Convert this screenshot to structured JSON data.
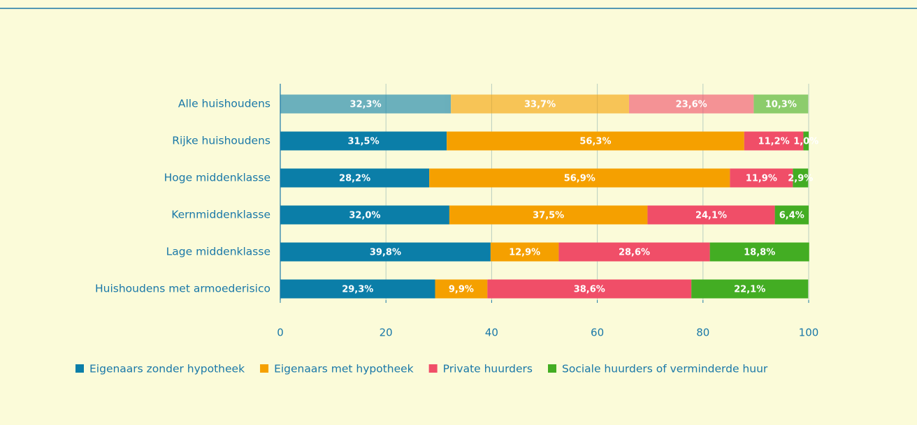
{
  "chart_data": {
    "type": "stacked_bar_horizontal",
    "categories": [
      "Alle huishoudens",
      "Rijke huishoudens",
      "Hoge middenklasse",
      "Kernmiddenklasse",
      "Lage middenklasse",
      "Huishoudens met armoederisico"
    ],
    "category_opacity": [
      0.6,
      1,
      1,
      1,
      1,
      1
    ],
    "series": [
      {
        "name": "Eigenaars zonder hypotheek",
        "color": "#0b7ea8",
        "values": [
          32.3,
          31.5,
          28.2,
          32.0,
          39.8,
          29.3
        ],
        "value_labels": [
          "32,3%",
          "31,5%",
          "28,2%",
          "32,0%",
          "39,8%",
          "29,3%"
        ]
      },
      {
        "name": "Eigenaars met hypotheek",
        "color": "#f5a000",
        "values": [
          33.7,
          56.3,
          56.9,
          37.5,
          12.9,
          9.9
        ],
        "value_labels": [
          "33,7%",
          "56,3%",
          "56,9%",
          "37,5%",
          "12,9%",
          "9,9%"
        ]
      },
      {
        "name": "Private huurders",
        "color": "#f04e68",
        "values": [
          23.6,
          11.2,
          11.9,
          24.1,
          28.6,
          38.6
        ],
        "value_labels": [
          "23,6%",
          "11,2%",
          "11,9%",
          "24,1%",
          "28,6%",
          "38,6%"
        ]
      },
      {
        "name": "Sociale huurders of verminderde huur",
        "color": "#43ad23",
        "values": [
          10.3,
          1.0,
          2.9,
          6.4,
          18.8,
          22.1
        ],
        "value_labels": [
          "10,3%",
          "1,0%",
          "2,9%",
          "6,4%",
          "18,8%",
          "22,1%"
        ]
      }
    ],
    "xlim": [
      0,
      100
    ],
    "xticks": [
      0,
      20,
      40,
      60,
      80,
      100
    ],
    "grid": true
  }
}
